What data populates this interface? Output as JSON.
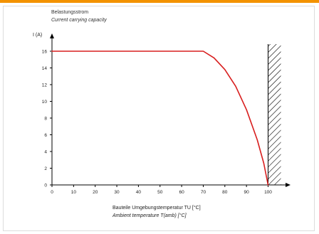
{
  "title": {
    "line1": "Belastungsstrom",
    "line2": "Current carrying capacity"
  },
  "y_axis_label": "I (A)",
  "x_axis_label": {
    "line1": "Bauteile Umgebungstemperatur TU [°C]",
    "line2": "Ambient temperature T(amb) [°C]"
  },
  "colors": {
    "curve": "#d81e1e",
    "accent_bar": "#f39200",
    "axis": "#000000"
  },
  "chart_data": {
    "type": "line",
    "title": "Belastungsstrom",
    "subtitle": "Current carrying capacity",
    "xlabel": "Bauteile Umgebungstemperatur TU [°C] / Ambient temperature T(amb) [°C]",
    "ylabel": "I (A)",
    "xlim": [
      0,
      110
    ],
    "ylim": [
      0,
      17.5
    ],
    "x_ticks": [
      0,
      10,
      20,
      30,
      40,
      50,
      60,
      70,
      80,
      90,
      100
    ],
    "y_ticks": [
      0,
      2,
      4,
      6,
      8,
      10,
      12,
      14,
      16
    ],
    "grid": false,
    "hatched_limit_x": 100,
    "series": [
      {
        "x": [
          0,
          70,
          75,
          80,
          85,
          90,
          95,
          98,
          100
        ],
        "y": [
          16,
          16,
          15.2,
          13.8,
          11.8,
          9.0,
          5.4,
          2.6,
          0
        ]
      }
    ]
  }
}
